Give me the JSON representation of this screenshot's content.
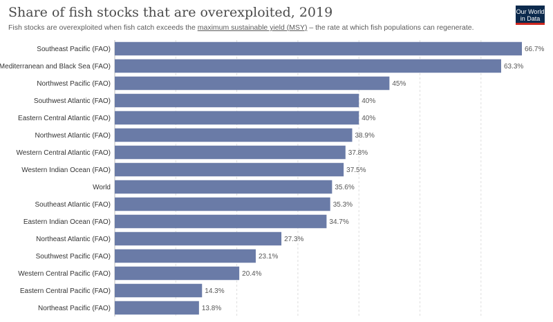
{
  "header": {
    "title": "Share of fish stocks that are overexploited, 2019",
    "subtitle_pre": "Fish stocks are overexploited when fish catch exceeds the ",
    "subtitle_link": "maximum sustainable yield (MSY)",
    "subtitle_post": " – the rate at which fish populations can regenerate.",
    "logo_line1": "Our World",
    "logo_line2": "in Data"
  },
  "colors": {
    "bar": "#6a7ba7",
    "grid": "#dddddd",
    "logo_bg": "#0c2a4d",
    "logo_accent": "#ce261e"
  },
  "chart_data": {
    "type": "bar",
    "orientation": "horizontal",
    "categories": [
      "Southeast Pacific (FAO)",
      "Mediterranean and Black Sea (FAO)",
      "Northwest Pacific (FAO)",
      "Southwest Atlantic (FAO)",
      "Eastern Central Atlantic (FAO)",
      "Northwest Atlantic (FAO)",
      "Western Central Atlantic (FAO)",
      "Western Indian Ocean (FAO)",
      "World",
      "Southeast Atlantic (FAO)",
      "Eastern Indian Ocean (FAO)",
      "Northeast Atlantic (FAO)",
      "Southwest Pacific (FAO)",
      "Western Central Pacific (FAO)",
      "Eastern Central Pacific (FAO)",
      "Northeast Pacific (FAO)"
    ],
    "values": [
      66.7,
      63.3,
      45,
      40,
      40,
      38.9,
      37.8,
      37.5,
      35.6,
      35.3,
      34.7,
      27.3,
      23.1,
      20.4,
      14.3,
      13.8
    ],
    "value_labels": [
      "66.7%",
      "63.3%",
      "45%",
      "40%",
      "40%",
      "38.9%",
      "37.8%",
      "37.5%",
      "35.6%",
      "35.3%",
      "34.7%",
      "27.3%",
      "23.1%",
      "20.4%",
      "14.3%",
      "13.8%"
    ],
    "xlim": [
      0,
      66.7
    ],
    "grid": true
  }
}
